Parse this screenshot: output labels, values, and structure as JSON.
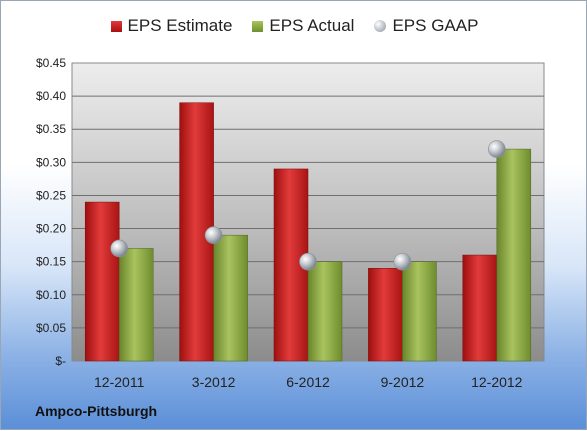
{
  "company": "Ampco-Pittsburgh",
  "legend": {
    "estimate": "EPS Estimate",
    "actual": "EPS Actual",
    "gaap": "EPS GAAP"
  },
  "colors": {
    "estimate": "#c81d1d",
    "actual": "#8aab3f",
    "gaap": "#b9bec6"
  },
  "chart_data": {
    "type": "bar",
    "categories": [
      "12-2011",
      "3-2012",
      "6-2012",
      "9-2012",
      "12-2012"
    ],
    "series": [
      {
        "name": "EPS Estimate",
        "values": [
          0.24,
          0.39,
          0.29,
          0.14,
          0.16
        ]
      },
      {
        "name": "EPS Actual",
        "values": [
          0.17,
          0.19,
          0.15,
          0.15,
          0.32
        ]
      },
      {
        "name": "EPS GAAP",
        "type": "scatter",
        "values": [
          0.17,
          0.19,
          0.15,
          0.15,
          0.32
        ]
      }
    ],
    "ylim": [
      0,
      0.45
    ],
    "yticks": [
      {
        "value": 0.45,
        "label": "$0.45"
      },
      {
        "value": 0.4,
        "label": "$0.40"
      },
      {
        "value": 0.35,
        "label": "$0.35"
      },
      {
        "value": 0.3,
        "label": "$0.30"
      },
      {
        "value": 0.25,
        "label": "$0.25"
      },
      {
        "value": 0.2,
        "label": "$0.20"
      },
      {
        "value": 0.15,
        "label": "$0.15"
      },
      {
        "value": 0.1,
        "label": "$0.10"
      },
      {
        "value": 0.05,
        "label": "$0.05"
      },
      {
        "value": 0,
        "label": "$-"
      }
    ],
    "grid": true,
    "legend_position": "top"
  }
}
